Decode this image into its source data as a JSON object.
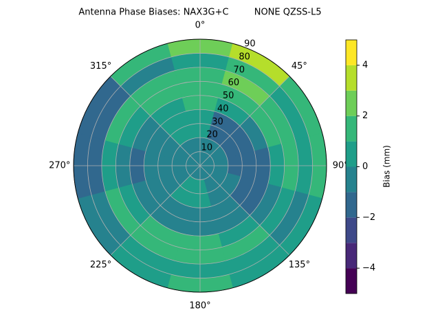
{
  "chart_data": {
    "type": "polar-contour",
    "title": "Antenna Phase Biases: NAX3G+C         NONE QZSS-L5",
    "theta": [
      0,
      30,
      60,
      90,
      120,
      150,
      180,
      210,
      240,
      270,
      300,
      330
    ],
    "r": [
      5,
      15,
      25,
      35,
      45,
      55,
      65,
      75,
      85
    ],
    "values": [
      [
        -0.5,
        -0.5,
        -0.5,
        -0.5,
        -0.5,
        -0.5,
        -0.5,
        -0.5,
        -0.5,
        -0.5,
        -0.5,
        -0.5
      ],
      [
        -0.5,
        -0.5,
        -0.8,
        -0.8,
        -0.5,
        -0.5,
        0.3,
        0.3,
        -0.5,
        -0.5,
        -0.5,
        -0.5
      ],
      [
        0.5,
        -1.2,
        -1.2,
        -1.2,
        -0.8,
        -0.5,
        0.5,
        0.5,
        -0.3,
        -0.5,
        -0.5,
        0.5
      ],
      [
        0.5,
        -1.3,
        -1.5,
        -1.5,
        -1.2,
        -0.8,
        -0.5,
        -0.5,
        -0.8,
        -0.8,
        -0.5,
        0.5
      ],
      [
        1.5,
        0.5,
        -0.5,
        -1.2,
        -1.2,
        -0.5,
        -0.5,
        -0.8,
        -0.8,
        -1.2,
        -0.5,
        0.5
      ],
      [
        1.5,
        1.5,
        1.5,
        0.5,
        -0.5,
        0.5,
        1.5,
        1.5,
        0.5,
        -0.5,
        0.5,
        1.5
      ],
      [
        1.5,
        2.5,
        1.5,
        1.5,
        0.5,
        1.5,
        1.5,
        1.5,
        1.5,
        0.5,
        1.5,
        1.5
      ],
      [
        0.5,
        1.5,
        0.5,
        0.5,
        -0.5,
        0.5,
        0.5,
        0.5,
        -0.5,
        -1.5,
        -1.5,
        -0.5
      ],
      [
        2.5,
        3.5,
        1.5,
        1.5,
        0.5,
        0.5,
        1.5,
        0.5,
        -0.5,
        -1.5,
        -1.5,
        1.5
      ]
    ],
    "rlim": [
      0,
      90
    ],
    "rticks": [
      10,
      20,
      30,
      40,
      50,
      60,
      70,
      80,
      90
    ],
    "thetaticks": [
      {
        "value": 0,
        "label": "0°"
      },
      {
        "value": 45,
        "label": "45°"
      },
      {
        "value": 90,
        "label": "90°"
      },
      {
        "value": 135,
        "label": "135°"
      },
      {
        "value": 180,
        "label": "180°"
      },
      {
        "value": 225,
        "label": "225°"
      },
      {
        "value": 270,
        "label": "270°"
      },
      {
        "value": 315,
        "label": "315°"
      }
    ],
    "levels": [
      -5,
      -4,
      -3,
      -2,
      -1,
      0,
      1,
      2,
      3,
      4,
      5
    ],
    "colors": [
      "#440154",
      "#482878",
      "#3e4989",
      "#31688e",
      "#26828e",
      "#1f9e89",
      "#35b779",
      "#6ece58",
      "#b5de2b",
      "#fde725"
    ],
    "colorbar_label": "Bias (mm)",
    "colorbar_ticks": [
      {
        "value": -4,
        "label": "−4"
      },
      {
        "value": -2,
        "label": "−2"
      },
      0,
      2,
      4
    ],
    "grid": true
  }
}
